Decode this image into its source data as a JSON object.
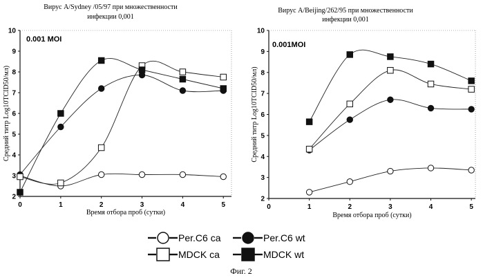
{
  "chart_data": [
    {
      "type": "line",
      "title": "Вирус A/Sydney /05/97 при множественности\nинфекции 0,001",
      "annotation": "0.001 MOI",
      "xlabel": "Время отбора проб (сутки)",
      "ylabel": "Средний титр Log10TCID50/мл)",
      "x_ticks": [
        0,
        1,
        2,
        3,
        4,
        5
      ],
      "y_ticks": [
        2,
        3,
        4,
        5,
        6,
        7,
        8,
        9,
        10
      ],
      "xlim": [
        0,
        5.2
      ],
      "ylim": [
        2,
        10
      ],
      "series": [
        {
          "name": "Per.C6 ca",
          "marker": "circle-open",
          "x": [
            0,
            1,
            2,
            3,
            4,
            5
          ],
          "y": [
            3.0,
            2.5,
            3.05,
            3.05,
            3.05,
            2.95
          ]
        },
        {
          "name": "Per.C6 wt",
          "marker": "circle-filled",
          "x": [
            0,
            1,
            2,
            3,
            4,
            5
          ],
          "y": [
            3.05,
            5.35,
            7.2,
            7.85,
            7.1,
            7.1
          ]
        },
        {
          "name": "MDCK ca",
          "marker": "square-open",
          "x": [
            0,
            1,
            2,
            3,
            4,
            5
          ],
          "y": [
            2.95,
            2.65,
            4.35,
            8.3,
            8.0,
            7.75
          ]
        },
        {
          "name": "MDCK wt",
          "marker": "square-filled",
          "x": [
            0,
            1,
            2,
            3,
            4,
            5
          ],
          "y": [
            2.2,
            6.0,
            8.55,
            8.1,
            7.65,
            7.2
          ]
        }
      ]
    },
    {
      "type": "line",
      "title": "Вирус A/Beijing/262/95 при множественности\nинфекции 0,001",
      "annotation": "0.001MOI",
      "xlabel": "Время отбора проб (сутки)",
      "ylabel": "Средний титр Log10TCID50/мл)",
      "x_ticks": [
        0,
        1,
        2,
        3,
        4,
        5
      ],
      "y_ticks": [
        2,
        3,
        4,
        5,
        6,
        7,
        8,
        9,
        10
      ],
      "xlim": [
        0,
        5.1
      ],
      "ylim": [
        2,
        10
      ],
      "series": [
        {
          "name": "Per.C6 ca",
          "marker": "circle-open",
          "x": [
            1,
            2,
            3,
            4,
            5
          ],
          "y": [
            2.3,
            2.8,
            3.3,
            3.45,
            3.35
          ]
        },
        {
          "name": "Per.C6 wt",
          "marker": "circle-filled",
          "x": [
            1,
            2,
            3,
            4,
            5
          ],
          "y": [
            4.3,
            5.75,
            6.7,
            6.3,
            6.25
          ]
        },
        {
          "name": "MDCK ca",
          "marker": "square-open",
          "x": [
            1,
            2,
            3,
            4,
            5
          ],
          "y": [
            4.35,
            6.5,
            8.1,
            7.45,
            7.2
          ]
        },
        {
          "name": "MDCK wt",
          "marker": "square-filled",
          "x": [
            1,
            2,
            3,
            4,
            5
          ],
          "y": [
            5.65,
            8.85,
            8.75,
            8.4,
            7.6
          ]
        }
      ]
    }
  ],
  "legend": [
    {
      "label": "Per.C6 ca",
      "marker": "circle-open"
    },
    {
      "label": "Per.C6 wt",
      "marker": "circle-filled"
    },
    {
      "label": "MDCK ca",
      "marker": "square-open"
    },
    {
      "label": "MDCK wt",
      "marker": "square-filled"
    }
  ],
  "figure_caption": "Фиг. 2"
}
